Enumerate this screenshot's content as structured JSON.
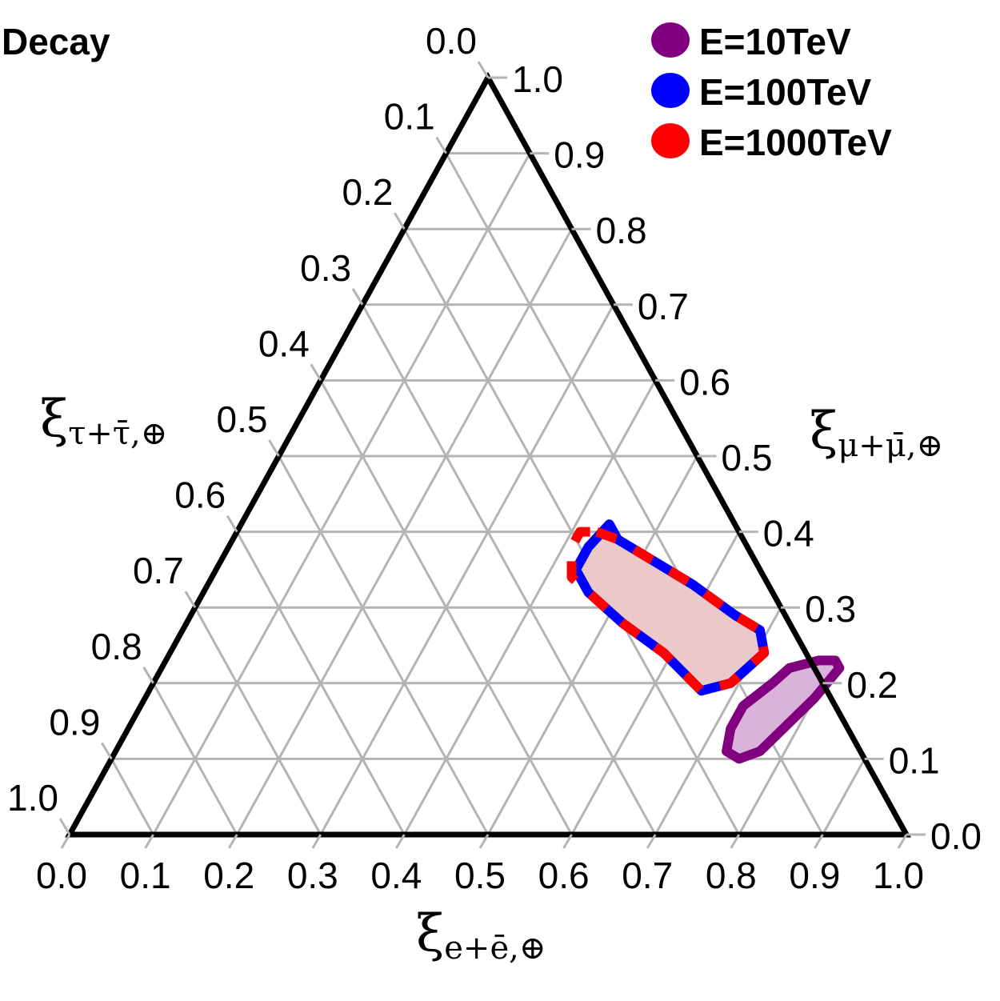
{
  "chart_data": {
    "type": "ternary-contour",
    "title": "Decay",
    "axes": {
      "bottom": {
        "label_symbol": "ξ",
        "label_subscript": "e+ē,⊕",
        "ticks": [
          "0.0",
          "0.1",
          "0.2",
          "0.3",
          "0.4",
          "0.5",
          "0.6",
          "0.7",
          "0.8",
          "0.9",
          "1.0"
        ]
      },
      "right": {
        "label_symbol": "ξ",
        "label_subscript": "μ+μ̄,⊕",
        "ticks": [
          "0.0",
          "0.1",
          "0.2",
          "0.3",
          "0.4",
          "0.5",
          "0.6",
          "0.7",
          "0.8",
          "0.9",
          "1.0"
        ]
      },
      "left": {
        "label_symbol": "ξ",
        "label_subscript": "τ+τ̄,⊕",
        "ticks": [
          "0.0",
          "0.1",
          "0.2",
          "0.3",
          "0.4",
          "0.5",
          "0.6",
          "0.7",
          "0.8",
          "0.9",
          "1.0"
        ]
      }
    },
    "grid": true,
    "legend_position": "top-right",
    "series": [
      {
        "name": "E=10TeV",
        "color": "#800080",
        "fill": "#d9b3d9",
        "style": "solid",
        "region": [
          [
            0.74,
            0.2
          ],
          [
            0.75,
            0.22
          ],
          [
            0.78,
            0.23
          ],
          [
            0.8,
            0.23
          ],
          [
            0.81,
            0.22
          ],
          [
            0.8,
            0.18
          ],
          [
            0.77,
            0.11
          ],
          [
            0.75,
            0.1
          ],
          [
            0.73,
            0.11
          ],
          [
            0.72,
            0.14
          ],
          [
            0.72,
            0.17
          ]
        ]
      },
      {
        "name": "E=100TeV",
        "color": "#0000ff",
        "fill": "#ecc9c9",
        "style": "solid",
        "region": [
          [
            0.44,
            0.41
          ],
          [
            0.46,
            0.39
          ],
          [
            0.52,
            0.36
          ],
          [
            0.58,
            0.33
          ],
          [
            0.65,
            0.29
          ],
          [
            0.69,
            0.27
          ],
          [
            0.71,
            0.24
          ],
          [
            0.69,
            0.2
          ],
          [
            0.66,
            0.19
          ],
          [
            0.59,
            0.24
          ],
          [
            0.52,
            0.28
          ],
          [
            0.46,
            0.32
          ],
          [
            0.43,
            0.35
          ],
          [
            0.43,
            0.38
          ]
        ]
      },
      {
        "name": "E=1000TeV",
        "color": "#ff0000",
        "fill": "#ecc9c9",
        "style": "dashed",
        "region": [
          [
            0.43,
            0.4
          ],
          [
            0.46,
            0.39
          ],
          [
            0.52,
            0.36
          ],
          [
            0.58,
            0.33
          ],
          [
            0.65,
            0.29
          ],
          [
            0.69,
            0.27
          ],
          [
            0.71,
            0.24
          ],
          [
            0.69,
            0.2
          ],
          [
            0.66,
            0.19
          ],
          [
            0.59,
            0.24
          ],
          [
            0.52,
            0.28
          ],
          [
            0.46,
            0.32
          ],
          [
            0.43,
            0.34
          ],
          [
            0.42,
            0.36
          ],
          [
            0.41,
            0.38
          ],
          [
            0.41,
            0.4
          ]
        ]
      }
    ]
  }
}
